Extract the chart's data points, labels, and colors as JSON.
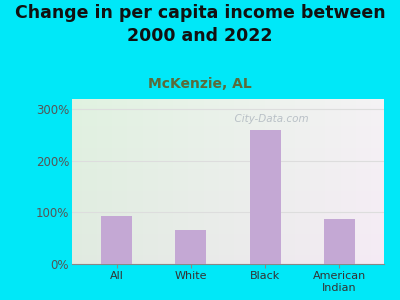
{
  "title": "Change in per capita income between\n2000 and 2022",
  "subtitle": "McKenzie, AL",
  "categories": [
    "All",
    "White",
    "Black",
    "American\nIndian"
  ],
  "values": [
    93,
    65,
    260,
    88
  ],
  "bar_color": "#c4a8d4",
  "ylim": [
    0,
    320
  ],
  "yticks": [
    0,
    100,
    200,
    300
  ],
  "ytick_labels": [
    "0%",
    "100%",
    "200%",
    "300%"
  ],
  "bg_outer": "#00e8f8",
  "bg_plot_topleft": "#d8efd0",
  "bg_plot_right": "#f0f0f0",
  "title_fontsize": 12.5,
  "subtitle_fontsize": 10,
  "subtitle_color": "#5a6b3a",
  "watermark": "  City-Data.com",
  "grid_color": "#dddddd",
  "tick_label_color": "#555555",
  "xlabel_color": "#333333"
}
